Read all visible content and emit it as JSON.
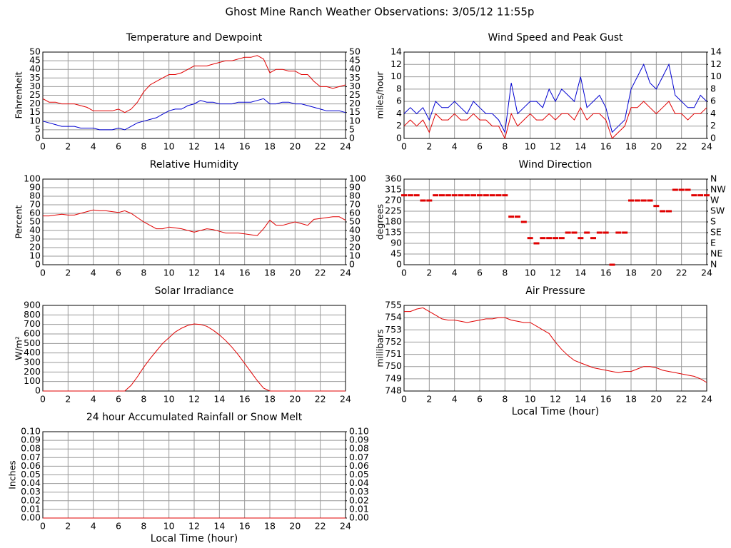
{
  "title": "Ghost Mine Ranch Weather Observations: 3/05/12 11:55p",
  "chart_data": [
    {
      "type": "line",
      "title": "Temperature and Dewpoint",
      "ylabel": "Fahrenheit",
      "x": [
        0,
        0.5,
        1,
        1.5,
        2,
        2.5,
        3,
        3.5,
        4,
        4.5,
        5,
        5.5,
        6,
        6.5,
        7,
        7.5,
        8,
        8.5,
        9,
        9.5,
        10,
        10.5,
        11,
        11.5,
        12,
        12.5,
        13,
        13.5,
        14,
        14.5,
        15,
        15.5,
        16,
        16.5,
        17,
        17.5,
        18,
        18.5,
        19,
        19.5,
        20,
        20.5,
        21,
        21.5,
        22,
        22.5,
        23,
        23.5,
        24
      ],
      "series": [
        {
          "color": "#e00000",
          "values": [
            23,
            21,
            21,
            20,
            20,
            20,
            19,
            18,
            16,
            16,
            16,
            16,
            17,
            15,
            17,
            21,
            27,
            31,
            33,
            35,
            37,
            37,
            38,
            40,
            42,
            42,
            42,
            43,
            44,
            45,
            45,
            46,
            47,
            47,
            48,
            46,
            38,
            40,
            40,
            39,
            39,
            37,
            37,
            33,
            30,
            30,
            29,
            30,
            31
          ]
        },
        {
          "color": "#0000d0",
          "values": [
            10,
            9,
            8,
            7,
            7,
            7,
            6,
            6,
            6,
            5,
            5,
            5,
            6,
            5,
            7,
            9,
            10,
            11,
            12,
            14,
            16,
            17,
            17,
            19,
            20,
            22,
            21,
            21,
            20,
            20,
            20,
            21,
            21,
            21,
            22,
            23,
            20,
            20,
            21,
            21,
            20,
            20,
            19,
            18,
            17,
            16,
            16,
            16,
            15
          ]
        }
      ],
      "xlim": [
        0,
        24
      ],
      "xticks": [
        0,
        2,
        4,
        6,
        8,
        10,
        12,
        14,
        16,
        18,
        20,
        22,
        24
      ],
      "ylim": [
        0,
        50
      ],
      "yticks": [
        0,
        5,
        10,
        15,
        20,
        25,
        30,
        35,
        40,
        45,
        50
      ],
      "y2lim": [
        0,
        50
      ],
      "y2ticks": [
        0,
        5,
        10,
        15,
        20,
        25,
        30,
        35,
        40,
        45,
        50
      ],
      "grid": true
    },
    {
      "type": "line",
      "title": "Wind Speed and Peak Gust",
      "ylabel": "miles/hour",
      "x": [
        0,
        0.5,
        1,
        1.5,
        2,
        2.5,
        3,
        3.5,
        4,
        4.5,
        5,
        5.5,
        6,
        6.5,
        7,
        7.5,
        8,
        8.5,
        9,
        9.5,
        10,
        10.5,
        11,
        11.5,
        12,
        12.5,
        13,
        13.5,
        14,
        14.5,
        15,
        15.5,
        16,
        16.5,
        17,
        17.5,
        18,
        18.5,
        19,
        19.5,
        20,
        20.5,
        21,
        21.5,
        22,
        22.5,
        23,
        23.5,
        24
      ],
      "series": [
        {
          "color": "#0000d0",
          "values": [
            4,
            5,
            4,
            5,
            3,
            6,
            5,
            5,
            6,
            5,
            4,
            6,
            5,
            4,
            4,
            3,
            1,
            9,
            4,
            5,
            6,
            6,
            5,
            8,
            6,
            8,
            7,
            6,
            10,
            5,
            6,
            7,
            5,
            1,
            2,
            3,
            8,
            10,
            12,
            9,
            8,
            10,
            12,
            7,
            6,
            5,
            5,
            7,
            6
          ]
        },
        {
          "color": "#e00000",
          "values": [
            2,
            3,
            2,
            3,
            1,
            4,
            3,
            3,
            4,
            3,
            3,
            4,
            3,
            3,
            2,
            2,
            0,
            4,
            2,
            3,
            4,
            3,
            3,
            4,
            3,
            4,
            4,
            3,
            5,
            3,
            4,
            4,
            3,
            0,
            1,
            2,
            5,
            5,
            6,
            5,
            4,
            5,
            6,
            4,
            4,
            3,
            4,
            4,
            5
          ]
        }
      ],
      "xlim": [
        0,
        24
      ],
      "xticks": [
        0,
        2,
        4,
        6,
        8,
        10,
        12,
        14,
        16,
        18,
        20,
        22,
        24
      ],
      "ylim": [
        0,
        14
      ],
      "yticks": [
        0,
        2,
        4,
        6,
        8,
        10,
        12,
        14
      ],
      "y2lim": [
        0,
        14
      ],
      "y2ticks": [
        0,
        2,
        4,
        6,
        8,
        10,
        12,
        14
      ],
      "grid": true
    },
    {
      "type": "line",
      "title": "Relative Humidity",
      "ylabel": "Percent",
      "x": [
        0,
        0.5,
        1,
        1.5,
        2,
        2.5,
        3,
        3.5,
        4,
        4.5,
        5,
        5.5,
        6,
        6.5,
        7,
        7.5,
        8,
        8.5,
        9,
        9.5,
        10,
        10.5,
        11,
        11.5,
        12,
        12.5,
        13,
        13.5,
        14,
        14.5,
        15,
        15.5,
        16,
        16.5,
        17,
        17.5,
        18,
        18.5,
        19,
        19.5,
        20,
        20.5,
        21,
        21.5,
        22,
        22.5,
        23,
        23.5,
        24
      ],
      "series": [
        {
          "color": "#e00000",
          "values": [
            57,
            57,
            58,
            59,
            58,
            58,
            60,
            62,
            64,
            63,
            63,
            62,
            61,
            63,
            60,
            55,
            50,
            46,
            42,
            42,
            44,
            43,
            42,
            40,
            38,
            40,
            42,
            41,
            39,
            37,
            37,
            37,
            36,
            35,
            34,
            42,
            52,
            46,
            46,
            48,
            50,
            48,
            46,
            53,
            54,
            55,
            56,
            56,
            52
          ]
        }
      ],
      "xlim": [
        0,
        24
      ],
      "xticks": [
        0,
        2,
        4,
        6,
        8,
        10,
        12,
        14,
        16,
        18,
        20,
        22,
        24
      ],
      "ylim": [
        0,
        100
      ],
      "yticks": [
        0,
        10,
        20,
        30,
        40,
        50,
        60,
        70,
        80,
        90,
        100
      ],
      "y2lim": [
        0,
        100
      ],
      "y2ticks": [
        0,
        10,
        20,
        30,
        40,
        50,
        60,
        70,
        80,
        90,
        100
      ],
      "grid": true
    },
    {
      "type": "scatter",
      "title": "Wind Direction",
      "ylabel": "degrees",
      "x": [
        0,
        0.5,
        1,
        1.5,
        2,
        2.5,
        3,
        3.5,
        4,
        4.5,
        5,
        5.5,
        6,
        6.5,
        7,
        7.5,
        8,
        8.5,
        9,
        9.5,
        10,
        10.5,
        11,
        11.5,
        12,
        12.5,
        13,
        13.5,
        14,
        14.5,
        15,
        15.5,
        16,
        16.5,
        17,
        17.5,
        18,
        18.5,
        19,
        19.5,
        20,
        20.5,
        21,
        21.5,
        22,
        22.5,
        23,
        23.5,
        24
      ],
      "series": [
        {
          "color": "#e00000",
          "values": [
            292,
            292,
            292,
            270,
            270,
            292,
            292,
            292,
            292,
            292,
            292,
            292,
            292,
            292,
            292,
            292,
            292,
            202,
            202,
            180,
            112,
            90,
            112,
            112,
            112,
            112,
            135,
            135,
            112,
            135,
            112,
            135,
            135,
            0,
            135,
            135,
            270,
            270,
            270,
            270,
            247,
            225,
            225,
            315,
            315,
            315,
            292,
            292,
            292
          ]
        }
      ],
      "xlim": [
        0,
        24
      ],
      "xticks": [
        0,
        2,
        4,
        6,
        8,
        10,
        12,
        14,
        16,
        18,
        20,
        22,
        24
      ],
      "ylim": [
        0,
        360
      ],
      "yticks": [
        0,
        45,
        90,
        135,
        180,
        225,
        270,
        315,
        360
      ],
      "y2lim": [
        0,
        360
      ],
      "y2ticks": [
        {
          "value": 0,
          "label": "N"
        },
        {
          "value": 45,
          "label": "NE"
        },
        {
          "value": 90,
          "label": "E"
        },
        {
          "value": 135,
          "label": "SE"
        },
        {
          "value": 180,
          "label": "S"
        },
        {
          "value": 225,
          "label": "SW"
        },
        {
          "value": 270,
          "label": "W"
        },
        {
          "value": 315,
          "label": "NW"
        },
        {
          "value": 360,
          "label": "N"
        }
      ],
      "grid": true
    },
    {
      "type": "line",
      "title": "Solar Irradiance",
      "ylabel": "W/m²",
      "x": [
        0,
        0.5,
        1,
        1.5,
        2,
        2.5,
        3,
        3.5,
        4,
        4.5,
        5,
        5.5,
        6,
        6.5,
        7,
        7.5,
        8,
        8.5,
        9,
        9.5,
        10,
        10.5,
        11,
        11.5,
        12,
        12.5,
        13,
        13.5,
        14,
        14.5,
        15,
        15.5,
        16,
        16.5,
        17,
        17.5,
        18,
        18.5,
        19,
        19.5,
        20,
        20.5,
        21,
        21.5,
        22,
        22.5,
        23,
        23.5,
        24
      ],
      "series": [
        {
          "color": "#e00000",
          "values": [
            0,
            0,
            0,
            0,
            0,
            0,
            0,
            0,
            0,
            0,
            0,
            0,
            0,
            0,
            60,
            150,
            250,
            340,
            420,
            500,
            560,
            620,
            660,
            690,
            705,
            700,
            680,
            640,
            590,
            530,
            460,
            380,
            290,
            200,
            110,
            30,
            0,
            0,
            0,
            0,
            0,
            0,
            0,
            0,
            0,
            0,
            0,
            0,
            0
          ]
        }
      ],
      "xlim": [
        0,
        24
      ],
      "xticks": [
        0,
        2,
        4,
        6,
        8,
        10,
        12,
        14,
        16,
        18,
        20,
        22,
        24
      ],
      "ylim": [
        0,
        900
      ],
      "yticks": [
        0,
        100,
        200,
        300,
        400,
        500,
        600,
        700,
        800,
        900
      ],
      "grid": true
    },
    {
      "type": "line",
      "title": "Air Pressure",
      "ylabel": "millibars",
      "xlabel": "Local Time (hour)",
      "x": [
        0,
        0.5,
        1,
        1.5,
        2,
        2.5,
        3,
        3.5,
        4,
        4.5,
        5,
        5.5,
        6,
        6.5,
        7,
        7.5,
        8,
        8.5,
        9,
        9.5,
        10,
        10.5,
        11,
        11.5,
        12,
        12.5,
        13,
        13.5,
        14,
        14.5,
        15,
        15.5,
        16,
        16.5,
        17,
        17.5,
        18,
        18.5,
        19,
        19.5,
        20,
        20.5,
        21,
        21.5,
        22,
        22.5,
        23,
        23.5,
        24
      ],
      "series": [
        {
          "color": "#e00000",
          "values": [
            754.5,
            754.5,
            754.7,
            754.8,
            754.5,
            754.2,
            753.9,
            753.8,
            753.8,
            753.7,
            753.6,
            753.7,
            753.8,
            753.9,
            753.9,
            754.0,
            754.0,
            753.8,
            753.7,
            753.6,
            753.6,
            753.3,
            753.0,
            752.7,
            752.0,
            751.4,
            750.9,
            750.5,
            750.3,
            750.1,
            749.9,
            749.8,
            749.7,
            749.6,
            749.5,
            749.6,
            749.6,
            749.8,
            750.0,
            750.0,
            749.9,
            749.7,
            749.6,
            749.5,
            749.4,
            749.3,
            749.2,
            749.0,
            748.7
          ]
        }
      ],
      "xlim": [
        0,
        24
      ],
      "xticks": [
        0,
        2,
        4,
        6,
        8,
        10,
        12,
        14,
        16,
        18,
        20,
        22,
        24
      ],
      "ylim": [
        748,
        755
      ],
      "yticks": [
        748,
        749,
        750,
        751,
        752,
        753,
        754,
        755
      ],
      "grid": true
    },
    {
      "type": "line",
      "title": "24 hour Accumulated Rainfall or Snow Melt",
      "ylabel": "Inches",
      "xlabel": "Local Time (hour)",
      "x": [
        0,
        24
      ],
      "series": [
        {
          "color": "#e00000",
          "values": [
            0,
            0
          ]
        }
      ],
      "xlim": [
        0,
        24
      ],
      "xticks": [
        0,
        2,
        4,
        6,
        8,
        10,
        12,
        14,
        16,
        18,
        20,
        22,
        24
      ],
      "ylim": [
        0,
        0.1
      ],
      "yticks": [
        {
          "value": 0,
          "label": "0.00"
        },
        {
          "value": 0.01,
          "label": "0.01"
        },
        {
          "value": 0.02,
          "label": "0.02"
        },
        {
          "value": 0.03,
          "label": "0.03"
        },
        {
          "value": 0.04,
          "label": "0.04"
        },
        {
          "value": 0.05,
          "label": "0.05"
        },
        {
          "value": 0.06,
          "label": "0.06"
        },
        {
          "value": 0.07,
          "label": "0.07"
        },
        {
          "value": 0.08,
          "label": "0.08"
        },
        {
          "value": 0.09,
          "label": "0.09"
        },
        {
          "value": 0.1,
          "label": "0.10"
        }
      ],
      "y2lim": [
        0,
        0.1
      ],
      "y2ticks": [
        {
          "value": 0,
          "label": "0.00"
        },
        {
          "value": 0.01,
          "label": "0.01"
        },
        {
          "value": 0.02,
          "label": "0.02"
        },
        {
          "value": 0.03,
          "label": "0.03"
        },
        {
          "value": 0.04,
          "label": "0.04"
        },
        {
          "value": 0.05,
          "label": "0.05"
        },
        {
          "value": 0.06,
          "label": "0.06"
        },
        {
          "value": 0.07,
          "label": "0.07"
        },
        {
          "value": 0.08,
          "label": "0.08"
        },
        {
          "value": 0.09,
          "label": "0.09"
        },
        {
          "value": 0.1,
          "label": "0.10"
        }
      ],
      "grid": true
    }
  ]
}
